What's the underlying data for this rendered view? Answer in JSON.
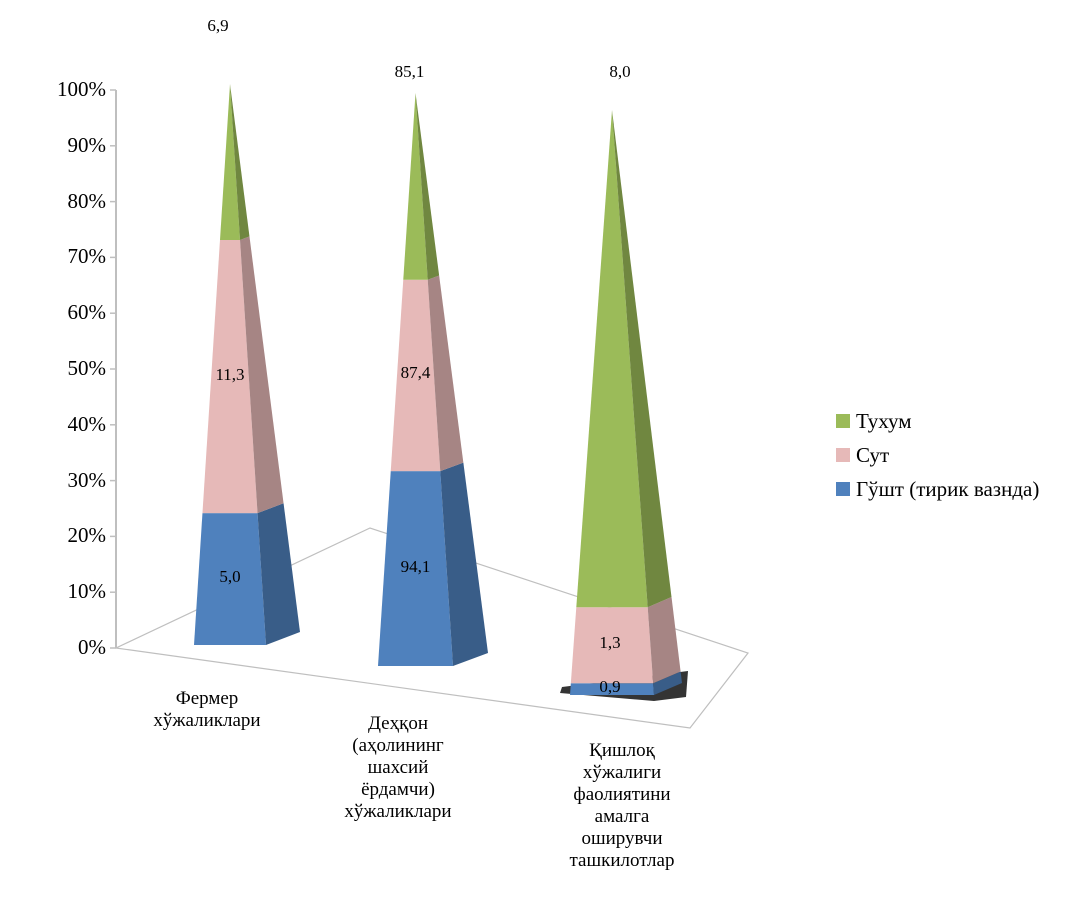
{
  "chart_data": {
    "type": "bar",
    "style": "3d-stacked-100-percent-pyramid",
    "categories": [
      "Фермер\nхўжаликлари",
      "Деҳқон\n(аҳолининг\nшахсий\nёрдамчи)\nхўжаликлари",
      "Қишлоқ\nхўжалиги\nфаолиятини\nамалга\nоширувчи\nташкилотлар"
    ],
    "series": [
      {
        "name": "Гўшт (тирик вазнда)",
        "color": "#4f81bd",
        "values": [
          5.0,
          94.1,
          0.9
        ],
        "labels": [
          "5,0",
          "94,1",
          "0,9"
        ],
        "share_pct": [
          23.5,
          34.0,
          2.0
        ]
      },
      {
        "name": "Сут",
        "color": "#e6b9b8",
        "values": [
          11.3,
          87.4,
          1.3
        ],
        "labels": [
          "11,3",
          "87,4",
          "1,3"
        ],
        "share_pct": [
          48.7,
          33.4,
          13.0
        ]
      },
      {
        "name": "Тухум",
        "color": "#9bbb59",
        "values": [
          6.9,
          85.1,
          8.0
        ],
        "labels": [
          "6,9",
          "85,1",
          "8,0"
        ],
        "share_pct": [
          27.8,
          32.6,
          85.0
        ]
      }
    ],
    "ylim": [
      0,
      100
    ],
    "yticks": [
      "0%",
      "10%",
      "20%",
      "30%",
      "40%",
      "50%",
      "60%",
      "70%",
      "80%",
      "90%",
      "100%"
    ],
    "legend": {
      "position": "right",
      "order": [
        "Тухум",
        "Сут",
        "Гўшт (тирик вазнда)"
      ]
    },
    "grid": false
  }
}
